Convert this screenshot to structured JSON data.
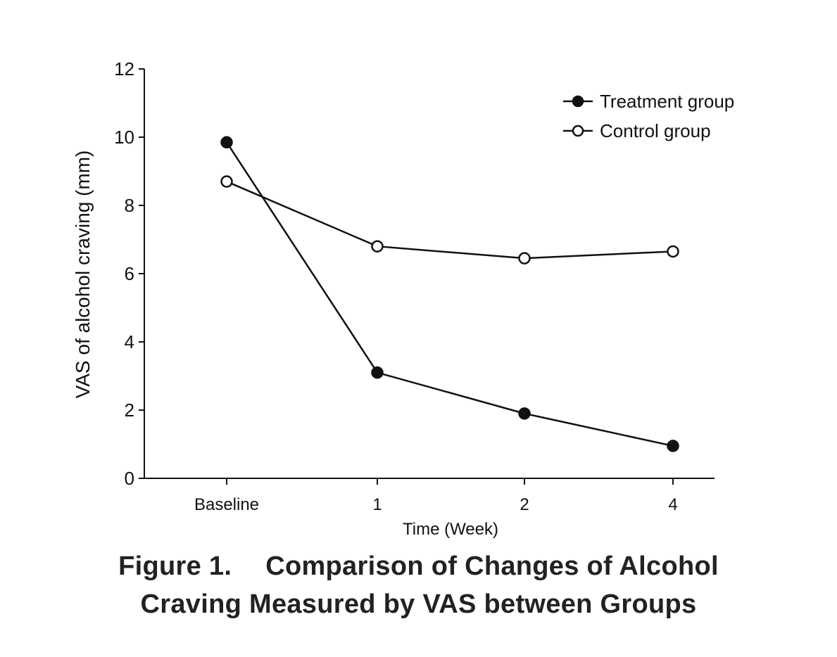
{
  "chart_data": {
    "type": "line",
    "categories": [
      "Baseline",
      "1",
      "2",
      "4"
    ],
    "xlabel": "Time (Week)",
    "ylabel": "VAS of alcohol craving (mm)",
    "ylim": [
      0,
      12
    ],
    "yticks": [
      "0",
      "2",
      "4",
      "6",
      "8",
      "10",
      "12"
    ],
    "grid": false,
    "legend_position": "top-right",
    "series": [
      {
        "name": "Treatment group",
        "marker": "filled-circle",
        "values": [
          9.85,
          3.1,
          1.9,
          0.95
        ]
      },
      {
        "name": "Control group",
        "marker": "open-circle",
        "values": [
          8.7,
          6.8,
          6.45,
          6.65
        ]
      }
    ],
    "line_color": "#111111"
  },
  "caption": {
    "label": "Figure 1.",
    "line1": "Comparison of Changes of Alcohol",
    "line2": "Craving Measured by VAS between Groups"
  }
}
